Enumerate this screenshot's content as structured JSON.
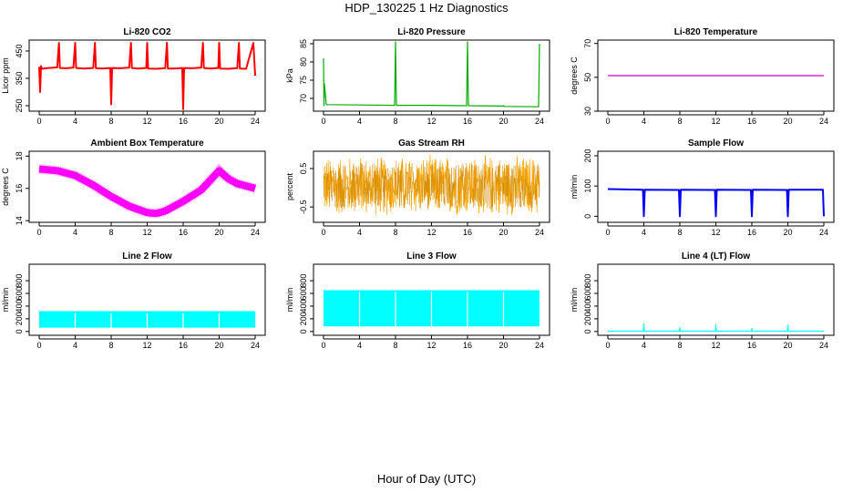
{
  "figure": {
    "title": "HDP_130225  1 Hz Diagnostics",
    "xlabel": "Hour of Day (UTC)"
  },
  "chart_data": [
    {
      "type": "line",
      "title": "Li-820 CO2",
      "ylabel": "Licor ppm",
      "xlim": [
        0,
        24
      ],
      "ylim": [
        230,
        490
      ],
      "xticks": [
        0,
        4,
        8,
        12,
        16,
        20,
        24
      ],
      "yticks": [
        250,
        350,
        450
      ],
      "color": "#ff0000",
      "series": [
        {
          "x": [
            0.0,
            0.1,
            0.2,
            0.3,
            1.0,
            2.0,
            2.2,
            2.3,
            3.0,
            3.8,
            4.0,
            4.1,
            5.0,
            6.0,
            6.2,
            6.3,
            7.0,
            7.9,
            8.0,
            8.1,
            9.0,
            10.0,
            10.2,
            10.3,
            11.0,
            11.9,
            12.0,
            12.1,
            13.0,
            14.0,
            14.2,
            14.3,
            15.0,
            15.9,
            16.0,
            16.1,
            17.0,
            18.0,
            18.2,
            18.3,
            19.0,
            19.9,
            20.0,
            20.1,
            21.0,
            22.0,
            22.2,
            22.3,
            23.0,
            23.8,
            24.0
          ],
          "y": [
            392,
            300,
            395,
            385,
            388,
            390,
            480,
            388,
            387,
            389,
            480,
            388,
            386,
            388,
            480,
            387,
            386,
            388,
            255,
            388,
            387,
            389,
            480,
            388,
            386,
            388,
            480,
            386,
            385,
            387,
            480,
            386,
            386,
            388,
            237,
            388,
            387,
            389,
            480,
            388,
            386,
            388,
            480,
            386,
            385,
            387,
            480,
            386,
            385,
            480,
            360
          ]
        }
      ]
    },
    {
      "type": "line",
      "title": "Li-820 Pressure",
      "ylabel": "kPa",
      "xlim": [
        0,
        24
      ],
      "ylim": [
        66.5,
        86
      ],
      "xticks": [
        0,
        4,
        8,
        12,
        16,
        20,
        24
      ],
      "yticks": [
        70,
        75,
        80,
        85
      ],
      "color": "#00aa00",
      "series": [
        {
          "x": [
            0.0,
            0.05,
            0.1,
            0.3,
            4.0,
            7.9,
            8.0,
            8.1,
            12.0,
            15.9,
            16.0,
            16.1,
            19.9,
            20.0,
            20.1,
            23.9,
            24.0
          ],
          "y": [
            81,
            68,
            74,
            68.3,
            68.2,
            68.1,
            85.5,
            68.1,
            68.1,
            68.0,
            85.5,
            68.0,
            67.9,
            68.0,
            67.8,
            67.7,
            85
          ]
        }
      ]
    },
    {
      "type": "line",
      "title": "Li-820 Temperature",
      "ylabel": "degrees C",
      "xlim": [
        0,
        24
      ],
      "ylim": [
        30,
        72
      ],
      "xticks": [
        0,
        4,
        8,
        12,
        16,
        20,
        24
      ],
      "yticks": [
        30,
        50,
        70
      ],
      "color": "#cc00cc",
      "series": [
        {
          "x": [
            0,
            24
          ],
          "y": [
            51,
            51
          ]
        }
      ]
    },
    {
      "type": "line",
      "title": "Ambient Box Temperature",
      "ylabel": "degrees C",
      "xlim": [
        0,
        24
      ],
      "ylim": [
        13.9,
        18.3
      ],
      "xticks": [
        0,
        4,
        8,
        12,
        16,
        20,
        24
      ],
      "yticks": [
        14,
        16,
        18
      ],
      "color": "#ff00ff",
      "series": [
        {
          "x": [
            0,
            2,
            4,
            6,
            8,
            10,
            12,
            13,
            14,
            16,
            18,
            19,
            20,
            21,
            22,
            24
          ],
          "y": [
            17.2,
            17.1,
            16.8,
            16.2,
            15.5,
            14.9,
            14.5,
            14.45,
            14.6,
            15.2,
            15.9,
            16.5,
            17.1,
            16.6,
            16.3,
            16.0
          ]
        }
      ]
    },
    {
      "type": "line",
      "title": "Gas Stream RH",
      "ylabel": "percent",
      "xlim": [
        0,
        24
      ],
      "ylim": [
        -0.9,
        0.95
      ],
      "xticks": [
        0,
        4,
        8,
        12,
        16,
        20,
        24
      ],
      "yticks": [
        -0.5,
        0.5
      ],
      "color": "#ffa500",
      "series": [
        {
          "x": [
            0,
            24
          ],
          "y": [
            0.05,
            0.05
          ],
          "noise": 0.85
        }
      ]
    },
    {
      "type": "line",
      "title": "Sample Flow",
      "ylabel": "ml/min",
      "xlim": [
        0,
        24
      ],
      "ylim": [
        -20,
        215
      ],
      "xticks": [
        0,
        4,
        8,
        12,
        16,
        20,
        24
      ],
      "yticks": [
        0,
        100,
        200
      ],
      "color": "#0000ff",
      "series": [
        {
          "x": [
            0,
            3.9,
            4.0,
            4.1,
            7.9,
            8.0,
            8.1,
            11.9,
            12.0,
            12.1,
            15.9,
            16.0,
            16.1,
            19.9,
            20.0,
            20.1,
            23.9,
            24.0
          ],
          "y": [
            90,
            88,
            0,
            88,
            87,
            0,
            88,
            87,
            0,
            88,
            87,
            0,
            88,
            87,
            0,
            88,
            88,
            0
          ]
        }
      ]
    },
    {
      "type": "area",
      "title": "Line 2 Flow",
      "ylabel": "ml/min",
      "xlim": [
        0,
        24
      ],
      "ylim": [
        -60,
        1060
      ],
      "xticks": [
        0,
        4,
        8,
        12,
        16,
        20,
        24
      ],
      "yticks": [
        0,
        200,
        400,
        600,
        800
      ],
      "color": "#00ffff",
      "series": [
        {
          "x": [
            0,
            24
          ],
          "low": [
            60,
            60
          ],
          "high": [
            320,
            320
          ]
        }
      ]
    },
    {
      "type": "area",
      "title": "Line 3 Flow",
      "ylabel": "ml/min",
      "xlim": [
        0,
        24
      ],
      "ylim": [
        -60,
        1060
      ],
      "xticks": [
        0,
        4,
        8,
        12,
        16,
        20,
        24
      ],
      "yticks": [
        0,
        200,
        400,
        600,
        800
      ],
      "color": "#00ffff",
      "series": [
        {
          "x": [
            0,
            24
          ],
          "low": [
            80,
            80
          ],
          "high": [
            650,
            650
          ]
        }
      ]
    },
    {
      "type": "line",
      "title": "Line 4 (LT) Flow",
      "ylabel": "ml/min",
      "xlim": [
        0,
        24
      ],
      "ylim": [
        -60,
        1060
      ],
      "xticks": [
        0,
        4,
        8,
        12,
        16,
        20,
        24
      ],
      "yticks": [
        0,
        200,
        400,
        600,
        800
      ],
      "color": "#00ffff",
      "series": [
        {
          "x": [
            0,
            3.95,
            4.0,
            4.05,
            7.95,
            8.0,
            8.05,
            11.95,
            12.0,
            12.05,
            15.95,
            16.0,
            16.05,
            19.95,
            20.0,
            20.05,
            24.0
          ],
          "y": [
            5,
            5,
            120,
            5,
            5,
            60,
            5,
            5,
            110,
            5,
            5,
            50,
            5,
            5,
            100,
            5,
            5
          ]
        }
      ]
    }
  ]
}
